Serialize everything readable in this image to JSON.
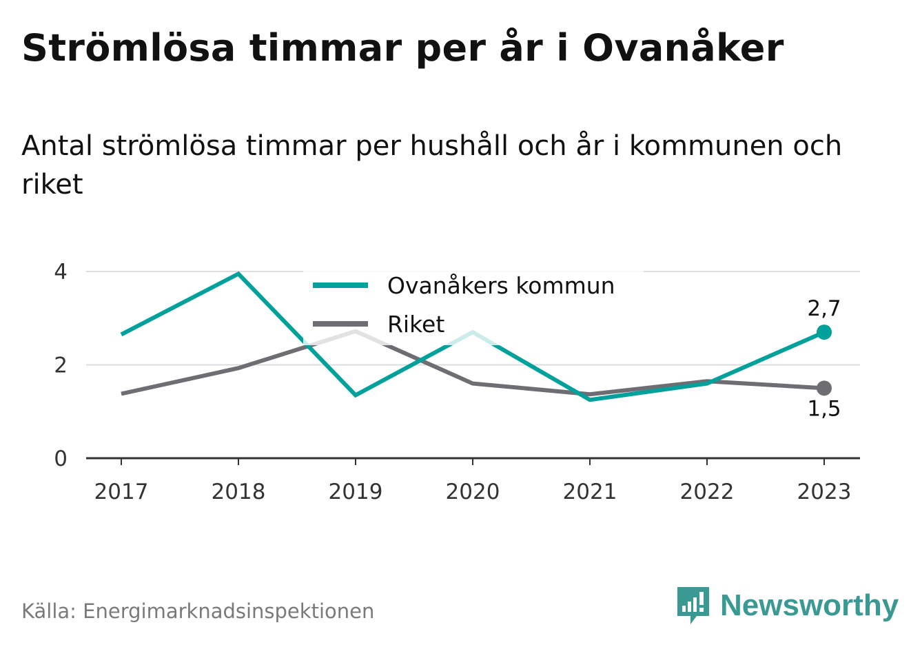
{
  "title": "Strömlösa timmar per år i Ovanåker",
  "subtitle": "Antal strömlösa timmar per hushåll och år i kommunen och riket",
  "source": "Källa: Energimarknadsinspektionen",
  "brand": {
    "name": "Newsworthy",
    "icon": "newsworthy-bar-chart-icon",
    "color": "#3a9a93"
  },
  "chart_data": {
    "type": "line",
    "x": [
      "2017",
      "2018",
      "2019",
      "2020",
      "2021",
      "2022",
      "2023"
    ],
    "series": [
      {
        "name": "Ovanåkers kommun",
        "color": "#00a19a",
        "values": [
          2.65,
          3.95,
          1.35,
          2.7,
          1.25,
          1.6,
          2.7
        ],
        "end_label": "2,7"
      },
      {
        "name": "Riket",
        "color": "#6e6d73",
        "values": [
          1.38,
          1.93,
          2.72,
          1.6,
          1.37,
          1.65,
          1.5
        ],
        "end_label": "1,5"
      }
    ],
    "y_ticks": [
      "0",
      "2",
      "4"
    ],
    "ylim": [
      0,
      4
    ],
    "grid": true,
    "legend": "top-center"
  }
}
